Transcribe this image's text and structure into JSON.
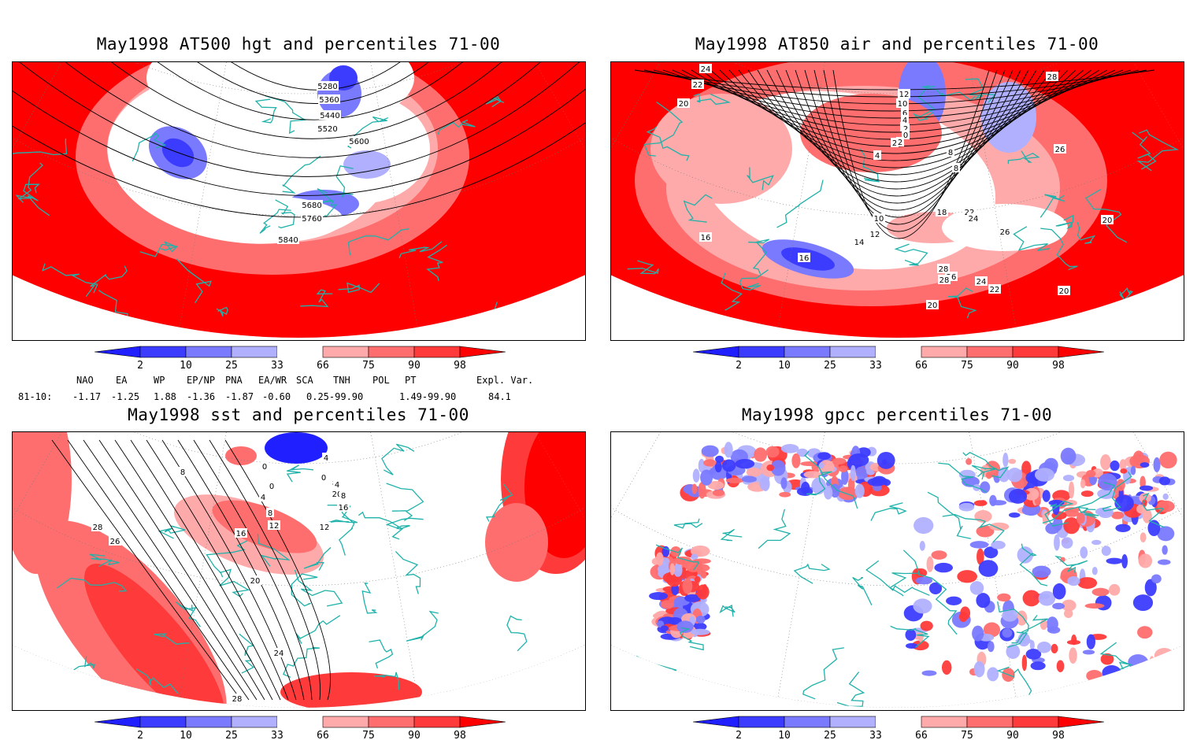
{
  "panels": [
    {
      "id": "p1",
      "title": "May1998 AT500 hgt and percentiles 71-00",
      "style": "warm",
      "labels": [
        "5280",
        "5360",
        "5440",
        "5520",
        "5600",
        "5680",
        "5760",
        "5840"
      ]
    },
    {
      "id": "p2",
      "title": "May1998 AT850 air and percentiles 71-00",
      "style": "mixed",
      "labels": [
        "24",
        "22",
        "20",
        "16",
        "16",
        "14",
        "12",
        "10",
        "18",
        "22",
        "24",
        "26",
        "28",
        "26",
        "20",
        "20",
        "24",
        "28",
        "26",
        "28",
        "22",
        "20",
        "4",
        "2",
        "4",
        "8",
        "8",
        "12",
        "10",
        "6",
        "4",
        "2",
        "0",
        "2"
      ]
    },
    {
      "id": "p3",
      "title": "May1998 sst and percentiles 71-00",
      "style": "sst",
      "labels": [
        "28",
        "26",
        "20",
        "24",
        "28",
        "16",
        "12",
        "8",
        "4",
        "0",
        "8",
        "12",
        "16",
        "20",
        "8",
        "4",
        "0",
        "0",
        "4",
        "8"
      ]
    },
    {
      "id": "p4",
      "title": "May1998 gpcc percentiles 71-00",
      "style": "gpcc",
      "labels": []
    }
  ],
  "colorbar": {
    "ticks": [
      "2",
      "10",
      "25",
      "33",
      "66",
      "75",
      "90",
      "98"
    ],
    "colors": [
      "#1f1fff",
      "#3c3cff",
      "#7a7aff",
      "#b0b0ff",
      "#ffffff",
      "#ffaaaa",
      "#ff6e6e",
      "#ff3a3a",
      "#ff0000"
    ]
  },
  "indices": {
    "row_label": "81-10:",
    "names": [
      "NAO",
      "EA",
      "WP",
      "EP/NP",
      "PNA",
      "EA/WR",
      "SCA",
      "TNH",
      "POL",
      "PT",
      "Expl. Var."
    ],
    "values": [
      "-1.17",
      "-1.25",
      "1.88",
      "-1.36",
      "-1.87",
      "-0.60",
      "0.25-99.90",
      "",
      "1.49-99.90",
      "",
      "84.1"
    ]
  }
}
